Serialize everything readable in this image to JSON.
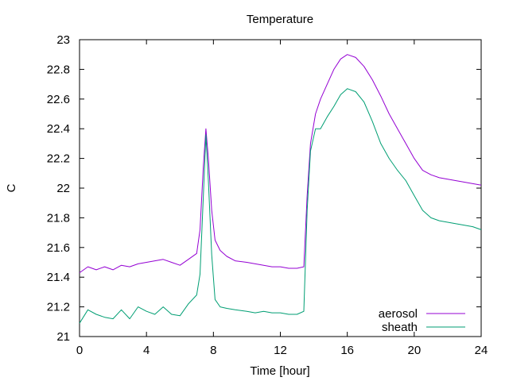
{
  "chart_data": {
    "type": "line",
    "title": "Temperature",
    "xlabel": "Time [hour]",
    "ylabel": "C",
    "xlim": [
      0,
      24
    ],
    "ylim": [
      21,
      23
    ],
    "xticks": [
      0,
      4,
      8,
      12,
      16,
      20,
      24
    ],
    "xtick_labels": [
      "0",
      "4",
      "8",
      "12",
      "16",
      "20",
      "24"
    ],
    "yticks": [
      21,
      21.2,
      21.4,
      21.6,
      21.8,
      22,
      22.2,
      22.4,
      22.6,
      22.8,
      23
    ],
    "ytick_labels": [
      "21",
      "21.2",
      "21.4",
      "21.6",
      "21.8",
      "22",
      "22.2",
      "22.4",
      "22.6",
      "22.8",
      "23"
    ],
    "grid": false,
    "legend_position": "bottom-right",
    "series": [
      {
        "name": "aerosol",
        "color": "#9400d3",
        "x": [
          0,
          0.5,
          1,
          1.5,
          2,
          2.5,
          3,
          3.5,
          4,
          4.5,
          5,
          5.5,
          6,
          6.5,
          7,
          7.2,
          7.4,
          7.55,
          7.7,
          7.9,
          8.1,
          8.4,
          8.8,
          9.3,
          10,
          10.5,
          11,
          11.5,
          12,
          12.5,
          13,
          13.4,
          13.6,
          13.8,
          14.1,
          14.4,
          14.8,
          15.2,
          15.6,
          16,
          16.5,
          17,
          17.5,
          18,
          18.5,
          19,
          19.5,
          20,
          20.5,
          21,
          21.5,
          22,
          22.5,
          23,
          23.5,
          24
        ],
        "y": [
          21.43,
          21.47,
          21.45,
          21.47,
          21.45,
          21.48,
          21.47,
          21.49,
          21.5,
          21.51,
          21.52,
          21.5,
          21.48,
          21.52,
          21.56,
          21.72,
          22.15,
          22.4,
          22.2,
          21.85,
          21.65,
          21.58,
          21.54,
          21.51,
          21.5,
          21.49,
          21.48,
          21.47,
          21.47,
          21.46,
          21.46,
          21.47,
          21.95,
          22.3,
          22.5,
          22.6,
          22.7,
          22.8,
          22.87,
          22.9,
          22.88,
          22.82,
          22.73,
          22.62,
          22.5,
          22.4,
          22.3,
          22.2,
          22.12,
          22.09,
          22.07,
          22.06,
          22.05,
          22.04,
          22.03,
          22.02
        ]
      },
      {
        "name": "sheath",
        "color": "#009e73",
        "x": [
          0,
          0.5,
          1,
          1.5,
          2,
          2.5,
          3,
          3.5,
          4,
          4.5,
          5,
          5.5,
          6,
          6.5,
          7,
          7.2,
          7.4,
          7.55,
          7.7,
          7.9,
          8.1,
          8.4,
          8.8,
          9.3,
          10,
          10.5,
          11,
          11.5,
          12,
          12.5,
          13,
          13.4,
          13.6,
          13.8,
          14.1,
          14.4,
          14.8,
          15.2,
          15.6,
          16,
          16.5,
          17,
          17.5,
          18,
          18.5,
          19,
          19.5,
          20,
          20.5,
          21,
          21.5,
          22,
          22.5,
          23,
          23.5,
          24
        ],
        "y": [
          21.09,
          21.18,
          21.15,
          21.13,
          21.12,
          21.18,
          21.12,
          21.2,
          21.17,
          21.15,
          21.2,
          21.15,
          21.14,
          21.22,
          21.28,
          21.42,
          21.95,
          22.36,
          22.05,
          21.55,
          21.25,
          21.2,
          21.19,
          21.18,
          21.17,
          21.16,
          21.17,
          21.16,
          21.16,
          21.15,
          21.15,
          21.17,
          21.85,
          22.25,
          22.4,
          22.4,
          22.48,
          22.55,
          22.63,
          22.67,
          22.65,
          22.58,
          22.45,
          22.3,
          22.2,
          22.12,
          22.05,
          21.95,
          21.85,
          21.8,
          21.78,
          21.77,
          21.76,
          21.75,
          21.74,
          21.72
        ]
      }
    ]
  }
}
